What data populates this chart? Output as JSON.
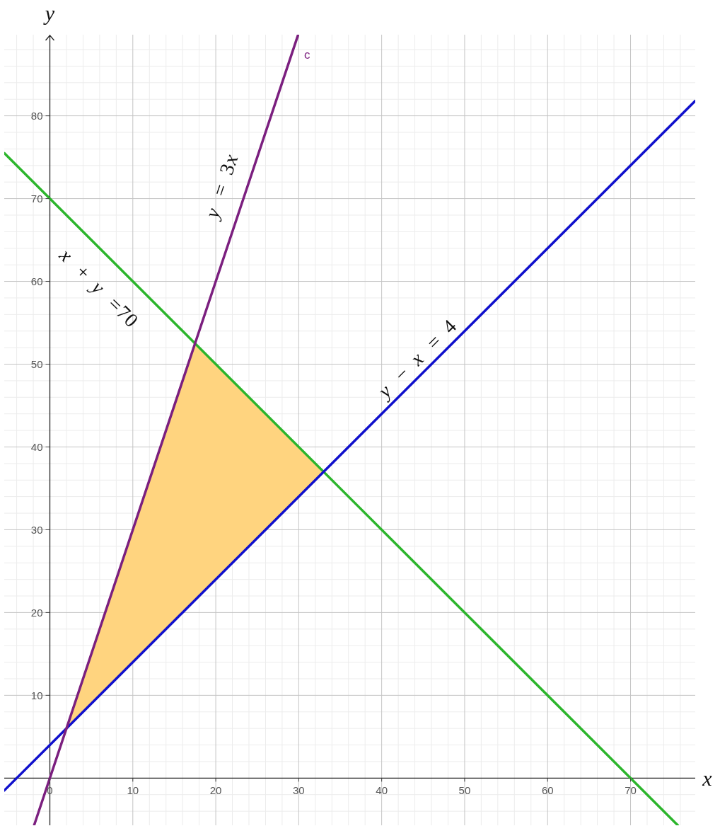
{
  "chart_data": {
    "type": "line",
    "xlabel": "x",
    "ylabel": "y",
    "xlim": [
      -5.5,
      77.8
    ],
    "ylim": [
      -5.7,
      89.8
    ],
    "xticks": [
      {
        "value": -4,
        "label": null
      },
      {
        "value": -2,
        "label": null
      },
      0,
      {
        "value": 2,
        "label": null
      },
      {
        "value": 4,
        "label": null
      },
      {
        "value": 6,
        "label": null
      },
      {
        "value": 8,
        "label": null
      },
      10,
      {
        "value": 12,
        "label": null
      },
      {
        "value": 14,
        "label": null
      },
      {
        "value": 16,
        "label": null
      },
      {
        "value": 18,
        "label": null
      },
      20,
      {
        "value": 22,
        "label": null
      },
      {
        "value": 24,
        "label": null
      },
      {
        "value": 26,
        "label": null
      },
      {
        "value": 28,
        "label": null
      },
      30,
      {
        "value": 32,
        "label": null
      },
      {
        "value": 34,
        "label": null
      },
      {
        "value": 36,
        "label": null
      },
      {
        "value": 38,
        "label": null
      },
      40,
      {
        "value": 42,
        "label": null
      },
      {
        "value": 44,
        "label": null
      },
      {
        "value": 46,
        "label": null
      },
      {
        "value": 48,
        "label": null
      },
      50,
      {
        "value": 52,
        "label": null
      },
      {
        "value": 54,
        "label": null
      },
      {
        "value": 56,
        "label": null
      },
      {
        "value": 58,
        "label": null
      },
      60,
      {
        "value": 62,
        "label": null
      },
      {
        "value": 64,
        "label": null
      },
      {
        "value": 66,
        "label": null
      },
      {
        "value": 68,
        "label": null
      },
      70,
      {
        "value": 72,
        "label": null
      },
      {
        "value": 74,
        "label": null
      },
      {
        "value": 76,
        "label": null
      }
    ],
    "yticks": [
      {
        "value": -4,
        "label": null
      },
      {
        "value": -2,
        "label": null
      },
      {
        "value": 2,
        "label": null
      },
      {
        "value": 4,
        "label": null
      },
      {
        "value": 6,
        "label": null
      },
      {
        "value": 8,
        "label": null
      },
      10,
      {
        "value": 12,
        "label": null
      },
      {
        "value": 14,
        "label": null
      },
      {
        "value": 16,
        "label": null
      },
      {
        "value": 18,
        "label": null
      },
      20,
      {
        "value": 22,
        "label": null
      },
      {
        "value": 24,
        "label": null
      },
      {
        "value": 26,
        "label": null
      },
      {
        "value": 28,
        "label": null
      },
      30,
      {
        "value": 32,
        "label": null
      },
      {
        "value": 34,
        "label": null
      },
      {
        "value": 36,
        "label": null
      },
      {
        "value": 38,
        "label": null
      },
      40,
      {
        "value": 42,
        "label": null
      },
      {
        "value": 44,
        "label": null
      },
      {
        "value": 46,
        "label": null
      },
      {
        "value": 48,
        "label": null
      },
      50,
      {
        "value": 52,
        "label": null
      },
      {
        "value": 54,
        "label": null
      },
      {
        "value": 56,
        "label": null
      },
      {
        "value": 58,
        "label": null
      },
      60,
      {
        "value": 62,
        "label": null
      },
      {
        "value": 64,
        "label": null
      },
      {
        "value": 66,
        "label": null
      },
      {
        "value": 68,
        "label": null
      },
      70,
      {
        "value": 72,
        "label": null
      },
      {
        "value": 74,
        "label": null
      },
      {
        "value": 76,
        "label": null
      },
      {
        "value": 78,
        "label": null
      },
      80,
      {
        "value": 82,
        "label": null
      },
      {
        "value": 84,
        "label": null
      },
      {
        "value": 86,
        "label": null
      },
      {
        "value": 88,
        "label": null
      }
    ],
    "grid": true,
    "series": [
      {
        "type": "area",
        "x": [
          2,
          17.5,
          33
        ],
        "values": [
          null,
          null,
          null
        ],
        "lower": [
          6,
          21.5,
          37
        ],
        "upper": [
          6,
          52.5,
          37
        ],
        "color": "#ffd47f"
      },
      {
        "name": "x + y =70",
        "x": [
          -5.5,
          75.7
        ],
        "values": [
          75.5,
          -5.7
        ],
        "color": "#2cb52c"
      },
      {
        "name": "y − x = 4",
        "x": [
          -5.5,
          77.8
        ],
        "values": [
          -1.5,
          81.8
        ],
        "color": "#1010cc"
      },
      {
        "name": "y = 3x",
        "x": [
          -1.9,
          29.9
        ],
        "values": [
          -5.7,
          89.7
        ],
        "color": "#7b1f7f"
      }
    ],
    "annotations": [
      "c"
    ]
  }
}
